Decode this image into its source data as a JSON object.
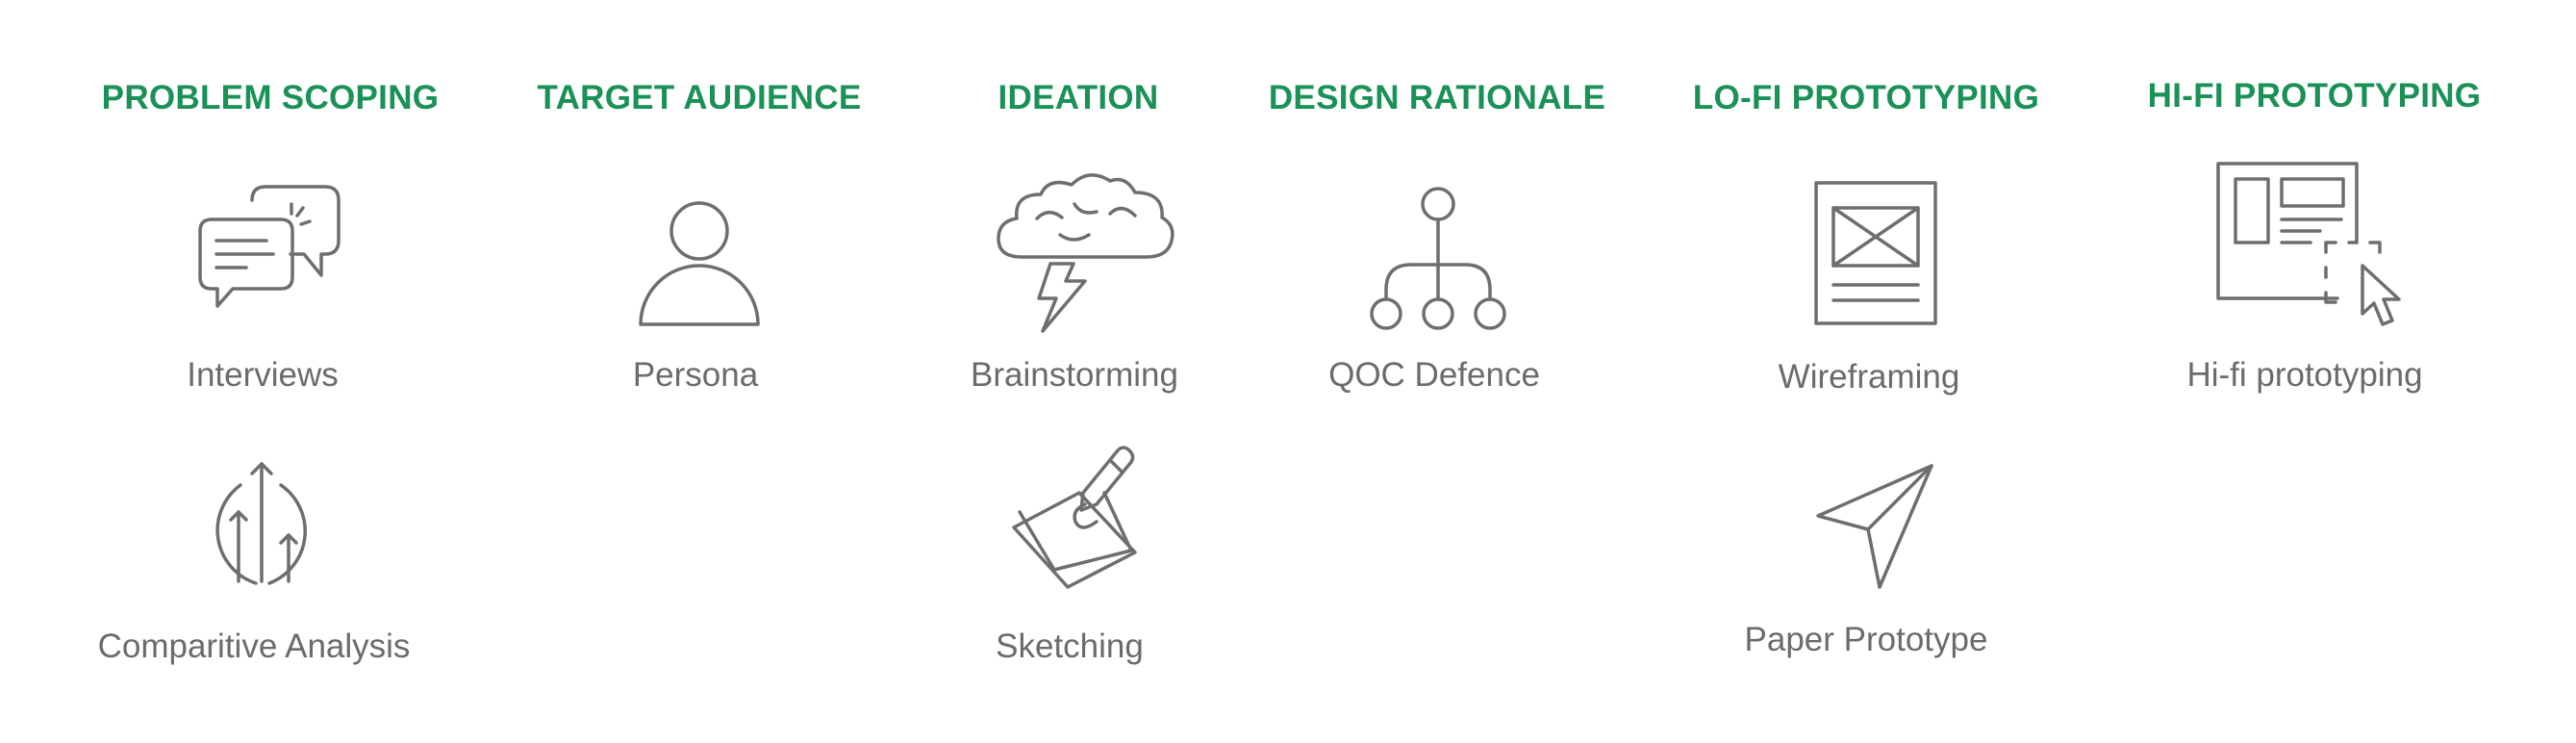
{
  "colors": {
    "heading": "#1a9156",
    "label": "#6b6b6b",
    "icon_stroke": "#6e6e70",
    "background": "#ffffff"
  },
  "columns": [
    {
      "heading": "PROBLEM SCOPING",
      "items": [
        {
          "label": "Interviews",
          "icon": "speech-bubbles-icon"
        },
        {
          "label": "Comparitive Analysis",
          "icon": "growth-arrows-icon"
        }
      ]
    },
    {
      "heading": "TARGET AUDIENCE",
      "items": [
        {
          "label": "Persona",
          "icon": "person-icon"
        }
      ]
    },
    {
      "heading": "IDEATION",
      "items": [
        {
          "label": "Brainstorming",
          "icon": "storm-cloud-icon"
        },
        {
          "label": "Sketching",
          "icon": "pencil-paper-icon"
        }
      ]
    },
    {
      "heading": "DESIGN RATIONALE",
      "items": [
        {
          "label": "QOC Defence",
          "icon": "hierarchy-tree-icon"
        }
      ]
    },
    {
      "heading": "LO-FI PROTOTYPING",
      "items": [
        {
          "label": "Wireframing",
          "icon": "wireframe-icon"
        },
        {
          "label": "Paper Prototype",
          "icon": "paper-plane-icon"
        }
      ]
    },
    {
      "heading": "HI-FI PROTOTYPING",
      "items": [
        {
          "label": "Hi-fi prototyping",
          "icon": "layout-cursor-icon"
        }
      ]
    }
  ]
}
